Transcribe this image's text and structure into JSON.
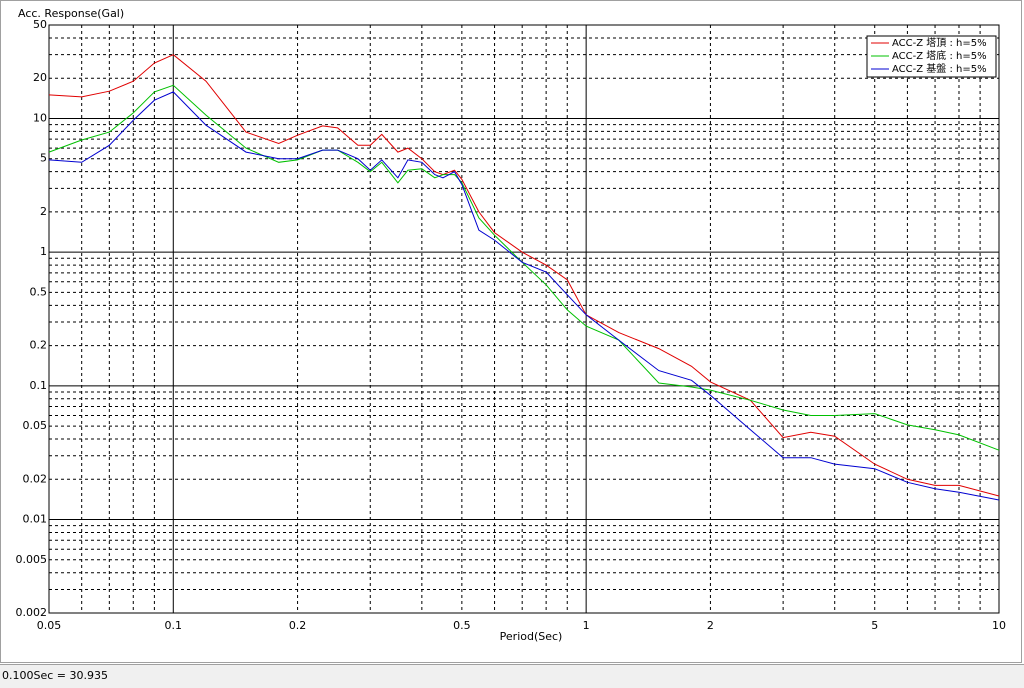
{
  "chart_data": {
    "type": "line",
    "ylabel": "Acc. Response(Gal)",
    "xlabel": "Period(Sec)",
    "xscale": "log",
    "yscale": "log",
    "grid": true,
    "legend": "upper right",
    "xlim": [
      0.05,
      10
    ],
    "ylim": [
      0.002,
      50
    ],
    "xticks": [
      0.05,
      0.1,
      0.2,
      0.5,
      1,
      2,
      5,
      10
    ],
    "yticks": [
      50,
      20,
      10,
      5,
      2,
      1,
      0.5,
      0.2,
      0.1,
      0.05,
      0.02,
      0.01,
      0.005,
      0.002
    ],
    "x": [
      0.05,
      0.06,
      0.07,
      0.08,
      0.09,
      0.1,
      0.12,
      0.15,
      0.18,
      0.2,
      0.23,
      0.25,
      0.28,
      0.3,
      0.32,
      0.35,
      0.37,
      0.4,
      0.43,
      0.45,
      0.48,
      0.5,
      0.55,
      0.6,
      0.7,
      0.8,
      0.9,
      1,
      1.2,
      1.5,
      1.8,
      2,
      2.5,
      3,
      3.5,
      4,
      5,
      6,
      7,
      8,
      10
    ],
    "series": [
      {
        "name": "ACC-Z 塔頂 : h=5%",
        "color": "#e00000",
        "values": [
          15,
          14.5,
          16,
          19,
          26,
          30,
          19,
          7.9,
          6.5,
          7.5,
          8.8,
          8.5,
          6.3,
          6.3,
          7.6,
          5.6,
          6,
          5,
          4,
          3.8,
          4.1,
          3.5,
          2,
          1.4,
          1.0,
          0.8,
          0.62,
          0.34,
          0.25,
          0.19,
          0.14,
          0.107,
          0.078,
          0.041,
          0.045,
          0.042,
          0.026,
          0.02,
          0.018,
          0.018,
          0.015
        ]
      },
      {
        "name": "ACC-Z 塔底 : h=5%",
        "color": "#00c000",
        "values": [
          5.6,
          6.9,
          7.9,
          11,
          15.8,
          17.7,
          10.6,
          6,
          4.7,
          4.9,
          5.8,
          5.8,
          4.7,
          4,
          4.7,
          3.3,
          4.1,
          4.2,
          3.6,
          3.8,
          3.8,
          3.3,
          1.8,
          1.34,
          0.84,
          0.57,
          0.37,
          0.28,
          0.22,
          0.105,
          0.098,
          0.093,
          0.078,
          0.066,
          0.06,
          0.06,
          0.062,
          0.051,
          0.047,
          0.043,
          0.033
        ]
      },
      {
        "name": "ACC-Z 基盤 : h=5%",
        "color": "#0000d0",
        "values": [
          4.9,
          4.7,
          6.3,
          9.7,
          13.7,
          15.8,
          8.9,
          5.6,
          5,
          5,
          5.8,
          5.8,
          5,
          4.1,
          4.9,
          3.6,
          4.9,
          4.7,
          3.8,
          3.6,
          4,
          3.2,
          1.46,
          1.23,
          0.84,
          0.71,
          0.48,
          0.34,
          0.22,
          0.13,
          0.11,
          0.085,
          0.047,
          0.029,
          0.029,
          0.026,
          0.024,
          0.019,
          0.017,
          0.016,
          0.014
        ]
      }
    ]
  },
  "status_bar": {
    "text": "0.100Sec = 30.935"
  }
}
